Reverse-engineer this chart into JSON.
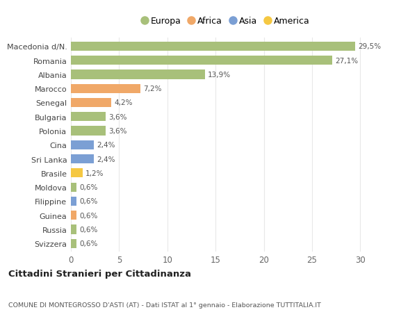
{
  "categories": [
    "Svizzera",
    "Russia",
    "Guinea",
    "Filippine",
    "Moldova",
    "Brasile",
    "Sri Lanka",
    "Cina",
    "Polonia",
    "Bulgaria",
    "Senegal",
    "Marocco",
    "Albania",
    "Romania",
    "Macedonia d/N."
  ],
  "values": [
    0.6,
    0.6,
    0.6,
    0.6,
    0.6,
    1.2,
    2.4,
    2.4,
    3.6,
    3.6,
    4.2,
    7.2,
    13.9,
    27.1,
    29.5
  ],
  "colors": [
    "#a8c07a",
    "#a8c07a",
    "#f0a868",
    "#7b9fd4",
    "#a8c07a",
    "#f5c842",
    "#7b9fd4",
    "#7b9fd4",
    "#a8c07a",
    "#a8c07a",
    "#f0a868",
    "#f0a868",
    "#a8c07a",
    "#a8c07a",
    "#a8c07a"
  ],
  "labels": [
    "0,6%",
    "0,6%",
    "0,6%",
    "0,6%",
    "0,6%",
    "1,2%",
    "2,4%",
    "2,4%",
    "3,6%",
    "3,6%",
    "4,2%",
    "7,2%",
    "13,9%",
    "27,1%",
    "29,5%"
  ],
  "legend": [
    {
      "label": "Europa",
      "color": "#a8c07a"
    },
    {
      "label": "Africa",
      "color": "#f0a868"
    },
    {
      "label": "Asia",
      "color": "#7b9fd4"
    },
    {
      "label": "America",
      "color": "#f5c842"
    }
  ],
  "title": "Cittadini Stranieri per Cittadinanza",
  "subtitle": "COMUNE DI MONTEGROSSO D'ASTI (AT) - Dati ISTAT al 1° gennaio - Elaborazione TUTTITALIA.IT",
  "xlim": [
    0,
    32
  ],
  "xticks": [
    0,
    5,
    10,
    15,
    20,
    25,
    30
  ],
  "background_color": "#ffffff",
  "grid_color": "#e8e8e8"
}
